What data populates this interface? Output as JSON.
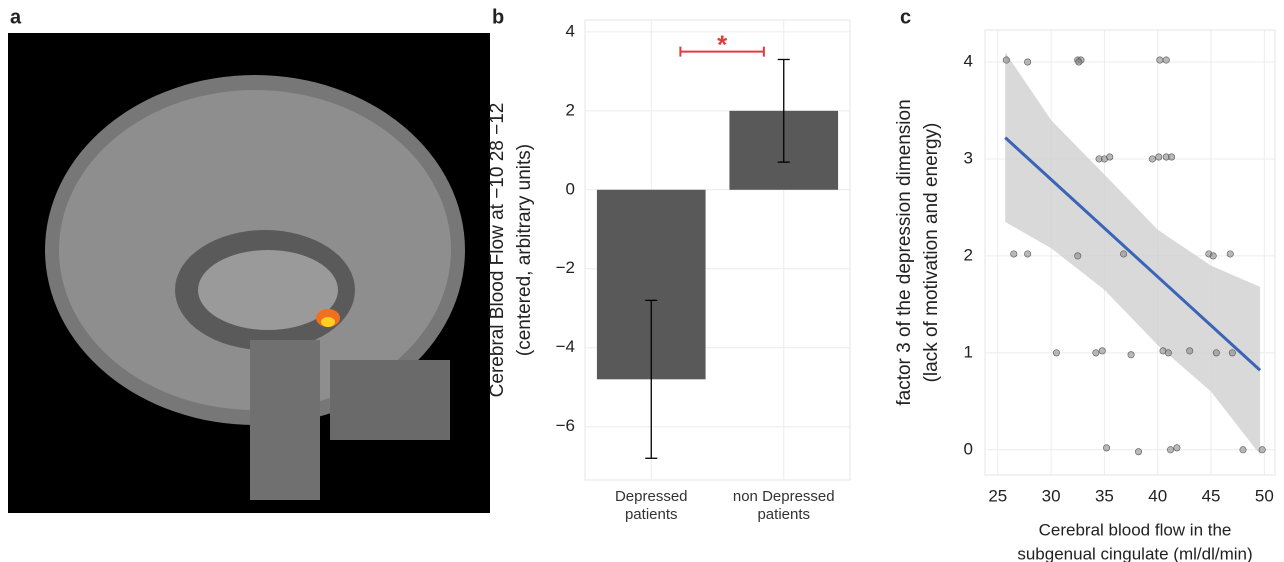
{
  "image_panel": {
    "label": "a"
  },
  "chart_data": [
    {
      "type": "bar",
      "panel_label": "b",
      "ylabel": [
        "Cerebral Blood Flow at −10 28 −12",
        "(centered, arbitrary units)"
      ],
      "categories": [
        "Depressed patients",
        "non Depressed patients"
      ],
      "values": [
        -4.8,
        2.0
      ],
      "errors": [
        2.0,
        1.3
      ],
      "color": "#595959",
      "ylim": [
        -7.35,
        4.3
      ],
      "yticks": [
        {
          "value": -6,
          "label": "−6"
        },
        {
          "value": -4,
          "label": "−4"
        },
        {
          "value": -2,
          "label": "−2"
        },
        0,
        2,
        4
      ],
      "grid": true,
      "significance": {
        "label": "*",
        "y": 3.5,
        "color": "#e03c3c"
      }
    },
    {
      "type": "scatter",
      "panel_label": "c",
      "ylabel": [
        "factor 3 of the depression dimension",
        "(lack of motivation and energy)"
      ],
      "xlabel": [
        "Cerebral blood flow in the",
        "subgenual cingulate (ml/dl/min)"
      ],
      "x": [
        25.8,
        27.8,
        32.5,
        32.8,
        32.6,
        40.2,
        40.8,
        34.5,
        35.0,
        35.5,
        39.5,
        40.1,
        40.8,
        41.3,
        26.5,
        27.8,
        32.5,
        36.8,
        44.8,
        45.2,
        46.8,
        30.5,
        34.2,
        34.8,
        37.5,
        40.5,
        41.0,
        43.0,
        45.5,
        47.0,
        35.2,
        38.2,
        41.2,
        41.8,
        48.0,
        49.8
      ],
      "values": [
        4.02,
        4.0,
        4.02,
        4.02,
        4.0,
        4.02,
        4.02,
        3.0,
        3.0,
        3.02,
        3.0,
        3.02,
        3.02,
        3.02,
        2.02,
        2.02,
        2.0,
        2.02,
        2.02,
        2.0,
        2.02,
        1.0,
        1.0,
        1.02,
        0.98,
        1.02,
        1.0,
        1.02,
        1.0,
        1.0,
        0.02,
        -0.02,
        0.0,
        0.02,
        0.0,
        0.0
      ],
      "color": "#8a8a8a",
      "fit": {
        "x": [
          25.7,
          49.6
        ],
        "values": [
          3.22,
          0.82
        ],
        "color": "#3a64b8"
      },
      "band": {
        "x": [
          25.7,
          30,
          35,
          40,
          45,
          49.6
        ],
        "upper": [
          4.1,
          3.4,
          2.84,
          2.27,
          1.9,
          1.68
        ],
        "lower": [
          2.35,
          2.08,
          1.65,
          1.08,
          0.6,
          -0.05
        ],
        "color": "#cfcfcf"
      },
      "xlim": [
        23.8,
        51.0
      ],
      "xticks": [
        25,
        30,
        35,
        40,
        45,
        50
      ],
      "ylim": [
        -0.26,
        4.33
      ],
      "yticks": [
        0,
        1,
        2,
        3,
        4
      ],
      "grid": true
    }
  ]
}
